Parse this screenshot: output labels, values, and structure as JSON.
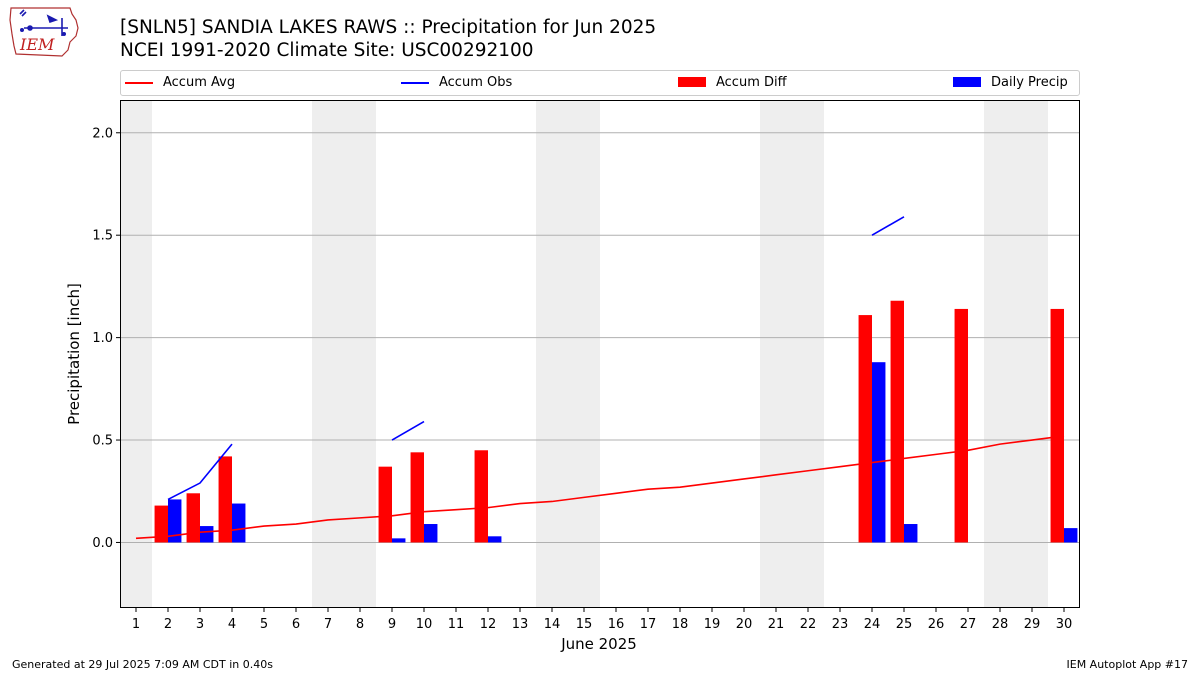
{
  "header": {
    "title_line1": "[SNLN5] SANDIA LAKES RAWS :: Precipitation for Jun 2025",
    "title_line2": "NCEI 1991-2020 Climate Site: USC00292100",
    "logo_text": "IEM"
  },
  "footer": {
    "generated": "Generated at 29 Jul 2025 7:09 AM CDT in 0.40s",
    "app": "IEM Autoplot App #17"
  },
  "chart_data": {
    "type": "bar",
    "xlabel": "June 2025",
    "ylabel": "Precipitation [inch]",
    "xlim": [
      0.5,
      30.5
    ],
    "ylim": [
      -0.32,
      2.16
    ],
    "y_ticks": [
      0.0,
      0.5,
      1.0,
      1.5,
      2.0
    ],
    "y_tick_labels": [
      "0.0",
      "0.5",
      "1.0",
      "1.5",
      "2.0"
    ],
    "x_ticks": [
      1,
      2,
      3,
      4,
      5,
      6,
      7,
      8,
      9,
      10,
      11,
      12,
      13,
      14,
      15,
      16,
      17,
      18,
      19,
      20,
      21,
      22,
      23,
      24,
      25,
      26,
      27,
      28,
      29,
      30
    ],
    "x_tick_labels": [
      "1",
      "2",
      "3",
      "4",
      "5",
      "6",
      "7",
      "8",
      "9",
      "10",
      "11",
      "12",
      "13",
      "14",
      "15",
      "16",
      "17",
      "18",
      "19",
      "20",
      "21",
      "22",
      "23",
      "24",
      "25",
      "26",
      "27",
      "28",
      "29",
      "30"
    ],
    "grid": "horizontal",
    "legend_placement": "top, above plot",
    "weekend_shading": [
      [
        0.5,
        1.5
      ],
      [
        6.5,
        8.5
      ],
      [
        13.5,
        15.5
      ],
      [
        20.5,
        22.5
      ],
      [
        27.5,
        29.5
      ]
    ],
    "legend": [
      {
        "label": "Accum Avg",
        "kind": "line",
        "color": "#ff0000"
      },
      {
        "label": "Accum Obs",
        "kind": "line",
        "color": "#0000ff"
      },
      {
        "label": "Accum Diff",
        "kind": "patch",
        "color": "#ff0000"
      },
      {
        "label": "Daily Precip",
        "kind": "patch",
        "color": "#0000ff"
      }
    ],
    "series": [
      {
        "name": "Accum Avg",
        "type": "line",
        "color": "#ff0000",
        "x": [
          1,
          2,
          3,
          4,
          5,
          6,
          7,
          8,
          9,
          10,
          11,
          12,
          13,
          14,
          15,
          16,
          17,
          18,
          19,
          20,
          21,
          22,
          23,
          24,
          25,
          26,
          27,
          28,
          29,
          30
        ],
        "values": [
          0.02,
          0.03,
          0.05,
          0.06,
          0.08,
          0.09,
          0.11,
          0.12,
          0.13,
          0.15,
          0.16,
          0.17,
          0.19,
          0.2,
          0.22,
          0.24,
          0.26,
          0.27,
          0.29,
          0.31,
          0.33,
          0.35,
          0.37,
          0.39,
          0.41,
          0.43,
          0.45,
          0.48,
          0.5,
          0.52
        ]
      },
      {
        "name": "Accum Obs",
        "type": "line",
        "color": "#0000ff",
        "segments": [
          {
            "x": [
              2,
              3,
              4
            ],
            "values": [
              0.21,
              0.29,
              0.48
            ]
          },
          {
            "x": [
              9,
              10
            ],
            "values": [
              0.5,
              0.59
            ]
          },
          {
            "x": [
              24,
              25
            ],
            "values": [
              1.5,
              1.59
            ]
          }
        ]
      },
      {
        "name": "Accum Diff",
        "type": "bar",
        "color": "#ff0000",
        "x": [
          2,
          3,
          4,
          9,
          10,
          12,
          24,
          25,
          27,
          30
        ],
        "values": [
          0.18,
          0.24,
          0.42,
          0.37,
          0.44,
          0.45,
          1.11,
          1.18,
          1.14,
          1.14
        ]
      },
      {
        "name": "Daily Precip",
        "type": "bar",
        "color": "#0000ff",
        "x": [
          2,
          3,
          4,
          9,
          10,
          12,
          24,
          25,
          30
        ],
        "values": [
          0.21,
          0.08,
          0.19,
          0.02,
          0.09,
          0.03,
          0.88,
          0.09,
          0.07
        ]
      }
    ]
  }
}
